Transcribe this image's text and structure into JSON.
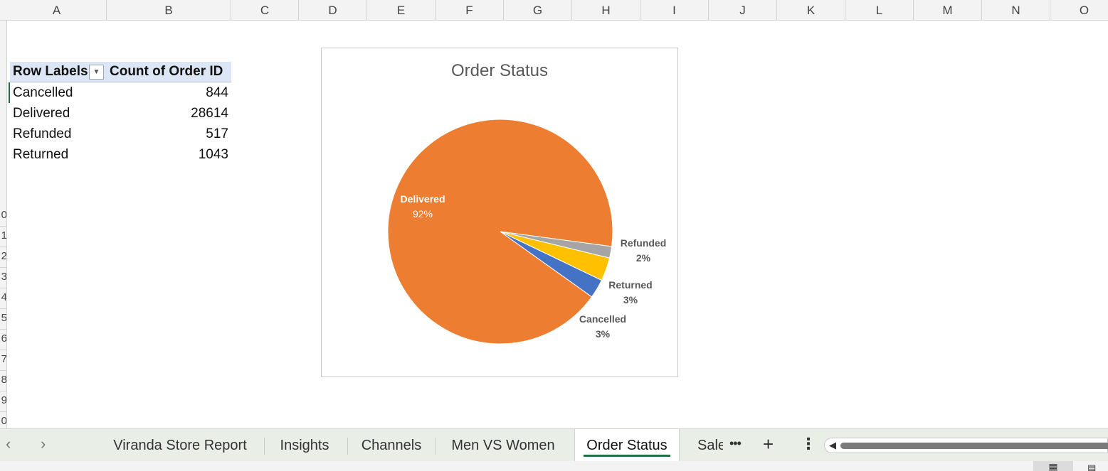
{
  "columns": [
    "A",
    "B",
    "C",
    "D",
    "E",
    "F",
    "G",
    "H",
    "I",
    "J",
    "K",
    "L",
    "M",
    "N",
    "O"
  ],
  "rows": [
    "0",
    "1",
    "2",
    "3",
    "4",
    "5",
    "6",
    "7",
    "8",
    "9",
    "0"
  ],
  "pivot": {
    "header_label": "Row Labels",
    "header_value": "Count of Order ID",
    "filter_icon": "dropdown-arrow-icon",
    "rows": [
      {
        "label": "Cancelled",
        "value": "844"
      },
      {
        "label": "Delivered",
        "value": "28614"
      },
      {
        "label": "Refunded",
        "value": "517"
      },
      {
        "label": "Returned",
        "value": "1043"
      }
    ]
  },
  "chart_data": {
    "type": "pie",
    "title": "Order Status",
    "categories": [
      "Cancelled",
      "Delivered",
      "Refunded",
      "Returned"
    ],
    "values": [
      844,
      28614,
      517,
      1043
    ],
    "percent_labels": [
      "3%",
      "92%",
      "2%",
      "3%"
    ],
    "colors": [
      "#4472c4",
      "#ed7d31",
      "#a5a5a5",
      "#ffc000"
    ],
    "legend": "none",
    "data_labels": "category name and percentage"
  },
  "sheet_tabs": {
    "prev_icon": "chevron-left-icon",
    "next_icon": "chevron-right-icon",
    "tabs": [
      "Viranda Store Report",
      "Insights",
      "Channels",
      "Men VS Women",
      "Order Status",
      "Sale"
    ],
    "active_tab": "Order Status",
    "more_label": "•••",
    "add_label": "+",
    "options_label": "⋮"
  },
  "status_bar": {
    "view_normal_icon": "grid-view-icon",
    "view_page_icon": "page-layout-icon"
  },
  "colors": {
    "accent_green": "#1e7145",
    "pivot_header_bg": "#dce6f4",
    "tab_bar_bg": "#e9efe6"
  }
}
